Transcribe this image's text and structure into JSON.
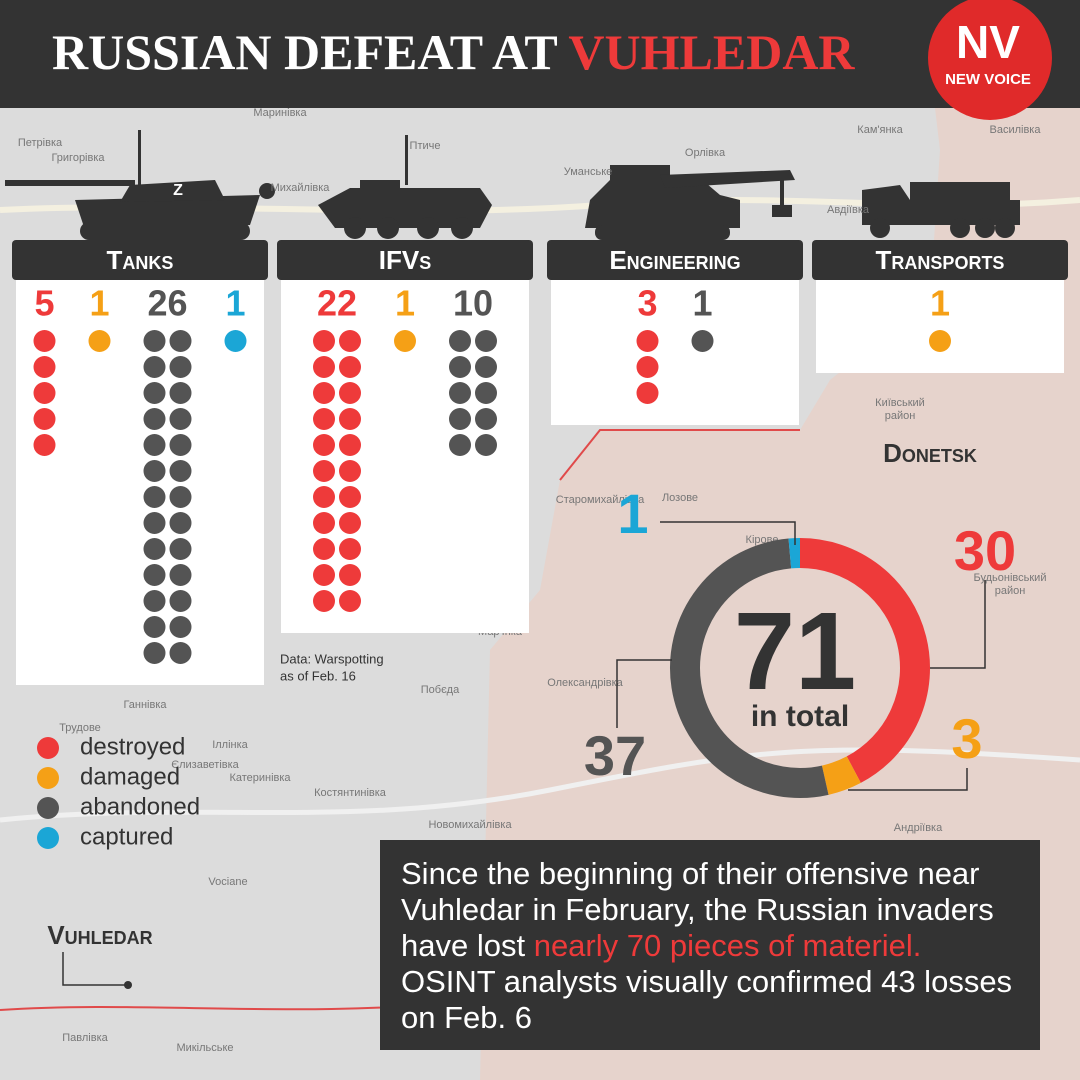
{
  "header": {
    "title": "RUSSIAN DEFEAT AT",
    "title_highlight": "VUHLEDAR",
    "logo": "NV",
    "logo_subtitle": "NEW VOICE"
  },
  "panels": [
    {
      "name": "Tanks",
      "values": [
        5,
        1,
        26,
        1
      ]
    },
    {
      "name": "IFVs",
      "values": [
        22,
        1,
        10,
        null
      ]
    },
    {
      "name": "Engineering",
      "values": [
        3,
        null,
        1,
        null
      ]
    },
    {
      "name": "Transports",
      "values": [
        null,
        1,
        null,
        null
      ]
    }
  ],
  "source": [
    "Data: Warspotting",
    "as of Feb. 16"
  ],
  "chart_data": {
    "type": "donut",
    "total": 71,
    "total_label": "in total",
    "categories": [
      "destroyed",
      "damaged",
      "abandoned",
      "captured"
    ],
    "values": [
      30,
      3,
      37,
      1
    ],
    "colors": [
      "#ee3a3a",
      "#f5a016",
      "#545454",
      "#1ba6d6"
    ]
  },
  "map_labels": {
    "regions": [
      "Donetsk",
      "Vuhledar"
    ],
    "towns": [
      "Петрівка",
      "Григорівка",
      "Маринівка",
      "Птиче",
      "Михайлівка",
      "Орлівка",
      "Уманське",
      "Кам'янка",
      "Василівка",
      "Авдіївка",
      "Київський",
      "район",
      "Старомихайлівка",
      "Лозове",
      "Кірове",
      "Будьонівський",
      "район",
      "Мар'їнка",
      "Олександрівка",
      "Побєда",
      "Ганнівка",
      "Трудове",
      "Іллінка",
      "Єлизаветівка",
      "Катеринівка",
      "Костянтинівка",
      "Новомихайлівка",
      "Андріївка",
      "Vociane",
      "Павлівка",
      "Микільське"
    ]
  },
  "summary": {
    "text_before": "Since the beginning of their offensive near Vuhledar in February, the Russian invaders have lost ",
    "highlight": "nearly 70 pieces of materiel.",
    "text_after": " OSINT analysts visually confirmed 43 losses on Feb. 6"
  }
}
